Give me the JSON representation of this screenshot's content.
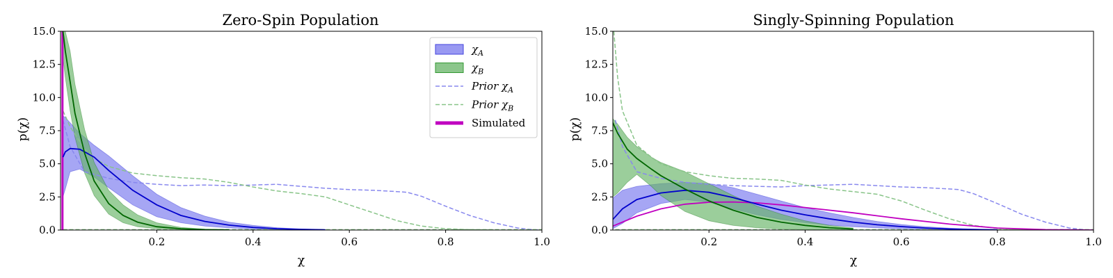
{
  "colors": {
    "chi_a": "#0000cc",
    "chi_a_fill": "#7777ee",
    "chi_b": "#006600",
    "chi_b_fill": "#66b366",
    "prior_a": "#8888ee",
    "prior_b": "#88c488",
    "simulated": "#c000c0"
  },
  "chart_data": [
    {
      "type": "line",
      "title": "Zero-Spin Population",
      "xlabel": "χ",
      "ylabel": "p(χ)",
      "xlim": [
        0.0,
        1.0
      ],
      "ylim": [
        0.0,
        15.0
      ],
      "xticks": [
        0.2,
        0.4,
        0.6,
        0.8,
        1.0
      ],
      "xtick_labels": [
        "0.2",
        "0.4",
        "0.6",
        "0.8",
        "1.0"
      ],
      "yticks": [
        0.0,
        2.5,
        5.0,
        7.5,
        10.0,
        12.5,
        15.0
      ],
      "ytick_labels": [
        "0.0",
        "2.5",
        "5.0",
        "7.5",
        "10.0",
        "12.5",
        "15.0"
      ],
      "legend": {
        "placement": "top-right",
        "entries": [
          {
            "label": "χA",
            "main": "χ",
            "sub": "A",
            "kind": "band",
            "color": "#7777ee",
            "edge": "#4444dd"
          },
          {
            "label": "χB",
            "main": "χ",
            "sub": "B",
            "kind": "band",
            "color": "#66b366",
            "edge": "#339933"
          },
          {
            "label": "Prior χA",
            "main": "Prior χ",
            "sub": "A",
            "kind": "dashed",
            "color": "#8888ee"
          },
          {
            "label": "Prior χB",
            "main": "Prior χ",
            "sub": "B",
            "kind": "dashed",
            "color": "#88c488"
          },
          {
            "label": "Simulated",
            "main": "Simulated",
            "sub": "",
            "kind": "thick",
            "color": "#c000c0"
          }
        ]
      },
      "bands": [
        {
          "name": "χA",
          "x": [
            0.005,
            0.01,
            0.02,
            0.04,
            0.07,
            0.1,
            0.15,
            0.2,
            0.25,
            0.3,
            0.35,
            0.4,
            0.45,
            0.5,
            0.55
          ],
          "lower": [
            2.5,
            3.1,
            4.4,
            4.6,
            4.0,
            3.2,
            1.9,
            1.0,
            0.55,
            0.3,
            0.16,
            0.08,
            0.04,
            0.02,
            0.0
          ],
          "upper": [
            8.6,
            8.5,
            8.1,
            7.3,
            6.4,
            5.6,
            4.1,
            2.7,
            1.7,
            1.05,
            0.6,
            0.35,
            0.18,
            0.08,
            0.03
          ],
          "median": [
            5.5,
            5.9,
            6.15,
            6.1,
            5.5,
            4.5,
            3.0,
            1.9,
            1.1,
            0.65,
            0.37,
            0.2,
            0.1,
            0.05,
            0.02
          ],
          "fill": "#7777ee",
          "line": "#0000cc"
        },
        {
          "name": "χB",
          "x": [
            0.005,
            0.01,
            0.02,
            0.03,
            0.05,
            0.07,
            0.1,
            0.13,
            0.16,
            0.2,
            0.25,
            0.3,
            0.35
          ],
          "lower": [
            13.0,
            11.5,
            9.0,
            7.0,
            4.3,
            2.6,
            1.2,
            0.55,
            0.25,
            0.1,
            0.04,
            0.01,
            0.0
          ],
          "upper": [
            15.0,
            15.0,
            13.5,
            11.0,
            7.6,
            5.1,
            3.0,
            1.9,
            1.15,
            0.55,
            0.2,
            0.07,
            0.02
          ],
          "median": [
            15.0,
            13.5,
            11.2,
            8.8,
            5.8,
            3.7,
            2.0,
            1.1,
            0.6,
            0.25,
            0.1,
            0.03,
            0.01
          ],
          "fill": "#66b366",
          "line": "#006600"
        }
      ],
      "lines": [
        {
          "name": "Prior χA",
          "style": "dashed",
          "color": "#8888ee",
          "x": [
            0.005,
            0.02,
            0.05,
            0.1,
            0.15,
            0.2,
            0.25,
            0.3,
            0.35,
            0.4,
            0.45,
            0.5,
            0.55,
            0.6,
            0.65,
            0.7,
            0.72,
            0.75,
            0.8,
            0.85,
            0.9,
            0.95,
            0.98,
            1.0
          ],
          "y": [
            8.3,
            6.3,
            4.4,
            3.9,
            3.6,
            3.45,
            3.35,
            3.4,
            3.35,
            3.4,
            3.45,
            3.3,
            3.15,
            3.05,
            3.0,
            2.9,
            2.85,
            2.55,
            1.8,
            1.1,
            0.55,
            0.15,
            0.03,
            0.0
          ]
        },
        {
          "name": "Prior χB",
          "style": "dashed",
          "color": "#88c488",
          "x": [
            0.005,
            0.02,
            0.05,
            0.08,
            0.1,
            0.15,
            0.2,
            0.25,
            0.3,
            0.35,
            0.4,
            0.45,
            0.5,
            0.55,
            0.6,
            0.65,
            0.7,
            0.75,
            0.8,
            0.85,
            0.9
          ],
          "y": [
            9.0,
            7.8,
            6.1,
            5.2,
            4.8,
            4.3,
            4.1,
            3.95,
            3.85,
            3.6,
            3.25,
            2.95,
            2.75,
            2.5,
            1.9,
            1.3,
            0.7,
            0.3,
            0.1,
            0.03,
            0.0
          ]
        },
        {
          "name": "Prior flat",
          "style": "dashed",
          "color": "#88c488",
          "x": [
            0.005,
            1.0
          ],
          "y": [
            0.03,
            0.03
          ]
        },
        {
          "name": "Simulated",
          "style": "thick",
          "color": "#c000c0",
          "x": [
            0.004,
            0.004
          ],
          "y": [
            0.0,
            15.0
          ]
        }
      ]
    },
    {
      "type": "line",
      "title": "Singly-Spinning Population",
      "xlabel": "χ",
      "ylabel": "p(χ)",
      "xlim": [
        0.0,
        1.0
      ],
      "ylim": [
        0.0,
        15.0
      ],
      "xticks": [
        0.2,
        0.4,
        0.6,
        0.8,
        1.0
      ],
      "xtick_labels": [
        "0.2",
        "0.4",
        "0.6",
        "0.8",
        "1.0"
      ],
      "yticks": [
        0.0,
        2.5,
        5.0,
        7.5,
        10.0,
        12.5,
        15.0
      ],
      "ytick_labels": [
        "0.0",
        "2.5",
        "5.0",
        "7.5",
        "10.0",
        "12.5",
        "15.0"
      ],
      "bands": [
        {
          "name": "χA",
          "x": [
            0.0,
            0.02,
            0.05,
            0.1,
            0.15,
            0.2,
            0.25,
            0.3,
            0.35,
            0.4,
            0.45,
            0.5,
            0.55,
            0.6,
            0.65,
            0.7,
            0.75,
            0.8
          ],
          "lower": [
            0.1,
            0.5,
            1.3,
            2.0,
            2.3,
            2.1,
            1.6,
            1.15,
            0.8,
            0.55,
            0.38,
            0.25,
            0.16,
            0.1,
            0.05,
            0.03,
            0.02,
            0.0
          ],
          "upper": [
            2.4,
            3.0,
            3.3,
            3.5,
            3.6,
            3.5,
            3.2,
            2.7,
            2.2,
            1.7,
            1.3,
            0.95,
            0.65,
            0.42,
            0.25,
            0.14,
            0.07,
            0.03
          ],
          "median": [
            0.8,
            1.6,
            2.3,
            2.8,
            3.0,
            2.85,
            2.45,
            1.95,
            1.5,
            1.15,
            0.85,
            0.6,
            0.4,
            0.26,
            0.15,
            0.08,
            0.04,
            0.01
          ],
          "fill": "#7777ee",
          "line": "#0000cc"
        },
        {
          "name": "χB",
          "x": [
            0.0,
            0.01,
            0.03,
            0.05,
            0.08,
            0.1,
            0.15,
            0.2,
            0.25,
            0.3,
            0.35,
            0.4,
            0.45,
            0.5
          ],
          "lower": [
            2.5,
            2.8,
            3.6,
            4.2,
            3.3,
            2.6,
            1.4,
            0.7,
            0.35,
            0.17,
            0.08,
            0.03,
            0.01,
            0.0
          ],
          "upper": [
            8.4,
            8.0,
            7.0,
            6.3,
            5.5,
            5.1,
            4.4,
            3.5,
            2.6,
            1.8,
            1.2,
            0.7,
            0.35,
            0.15
          ],
          "median": [
            8.1,
            7.3,
            6.1,
            5.4,
            4.6,
            4.1,
            3.1,
            2.2,
            1.5,
            0.95,
            0.6,
            0.35,
            0.18,
            0.08
          ],
          "fill": "#66b366",
          "line": "#006600"
        }
      ],
      "lines": [
        {
          "name": "Prior χA",
          "style": "dashed",
          "color": "#8888ee",
          "x": [
            0.005,
            0.02,
            0.05,
            0.1,
            0.15,
            0.2,
            0.25,
            0.3,
            0.35,
            0.4,
            0.45,
            0.5,
            0.55,
            0.6,
            0.65,
            0.7,
            0.72,
            0.75,
            0.8,
            0.85,
            0.9,
            0.95,
            0.98,
            1.0
          ],
          "y": [
            8.3,
            6.3,
            4.4,
            3.9,
            3.6,
            3.45,
            3.35,
            3.3,
            3.25,
            3.35,
            3.4,
            3.45,
            3.35,
            3.25,
            3.2,
            3.1,
            3.05,
            2.75,
            2.0,
            1.2,
            0.6,
            0.15,
            0.03,
            0.0
          ]
        },
        {
          "name": "Prior χB",
          "style": "dashed",
          "color": "#88c488",
          "x": [
            0.002,
            0.01,
            0.02,
            0.05,
            0.08,
            0.1,
            0.15,
            0.2,
            0.25,
            0.3,
            0.35,
            0.4,
            0.45,
            0.5,
            0.55,
            0.6,
            0.65,
            0.7,
            0.75,
            0.8,
            0.85,
            0.9
          ],
          "y": [
            15.0,
            11.5,
            9.0,
            6.4,
            5.5,
            5.0,
            4.4,
            4.1,
            3.9,
            3.85,
            3.75,
            3.4,
            3.1,
            2.9,
            2.7,
            2.2,
            1.5,
            0.85,
            0.35,
            0.12,
            0.03,
            0.0
          ]
        },
        {
          "name": "Prior flat",
          "style": "dashed",
          "color": "#88c488",
          "x": [
            0.005,
            1.0
          ],
          "y": [
            0.03,
            0.03
          ]
        },
        {
          "name": "Simulated",
          "style": "solid",
          "color": "#c000c0",
          "x": [
            0.0,
            0.05,
            0.1,
            0.15,
            0.2,
            0.25,
            0.3,
            0.35,
            0.4,
            0.5,
            0.6,
            0.7,
            0.8,
            0.9,
            1.0
          ],
          "y": [
            0.3,
            1.05,
            1.6,
            1.95,
            2.1,
            2.12,
            2.05,
            1.9,
            1.7,
            1.3,
            0.85,
            0.45,
            0.15,
            0.03,
            0.0
          ]
        }
      ]
    }
  ]
}
